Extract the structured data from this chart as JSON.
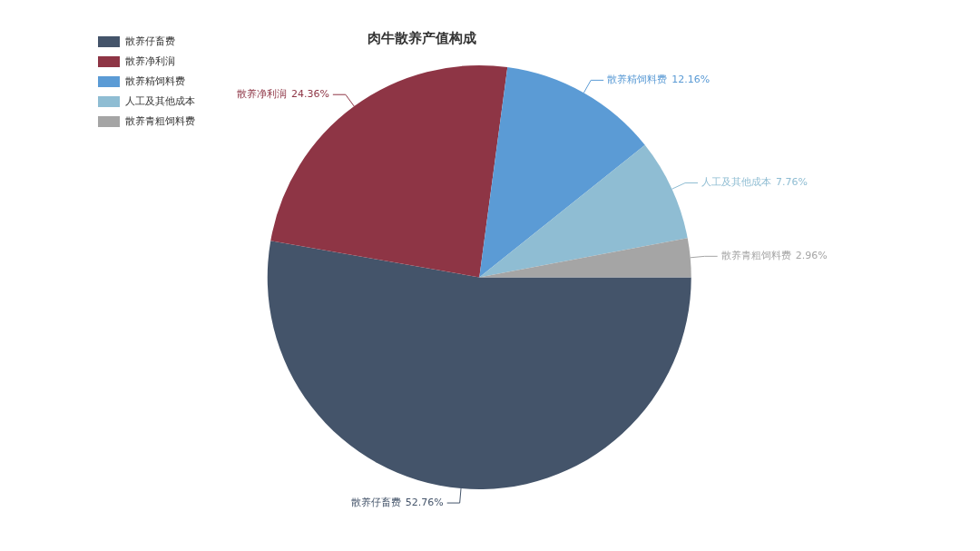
{
  "chart_data": {
    "type": "pie",
    "title": "肉牛散养产值构成",
    "categories": [
      "散养仔畜费",
      "散养净利润",
      "散养精饲料费",
      "人工及其他成本",
      "散养青粗饲料费"
    ],
    "values": [
      52.76,
      24.36,
      12.16,
      7.76,
      2.96
    ],
    "colors": [
      "#44546a",
      "#8e3545",
      "#5b9bd5",
      "#8fbdd3",
      "#a5a5a5"
    ],
    "value_labels": [
      "52.76%",
      "24.36%",
      "12.16%",
      "7.76%",
      "2.96%"
    ],
    "legend": "top left"
  }
}
